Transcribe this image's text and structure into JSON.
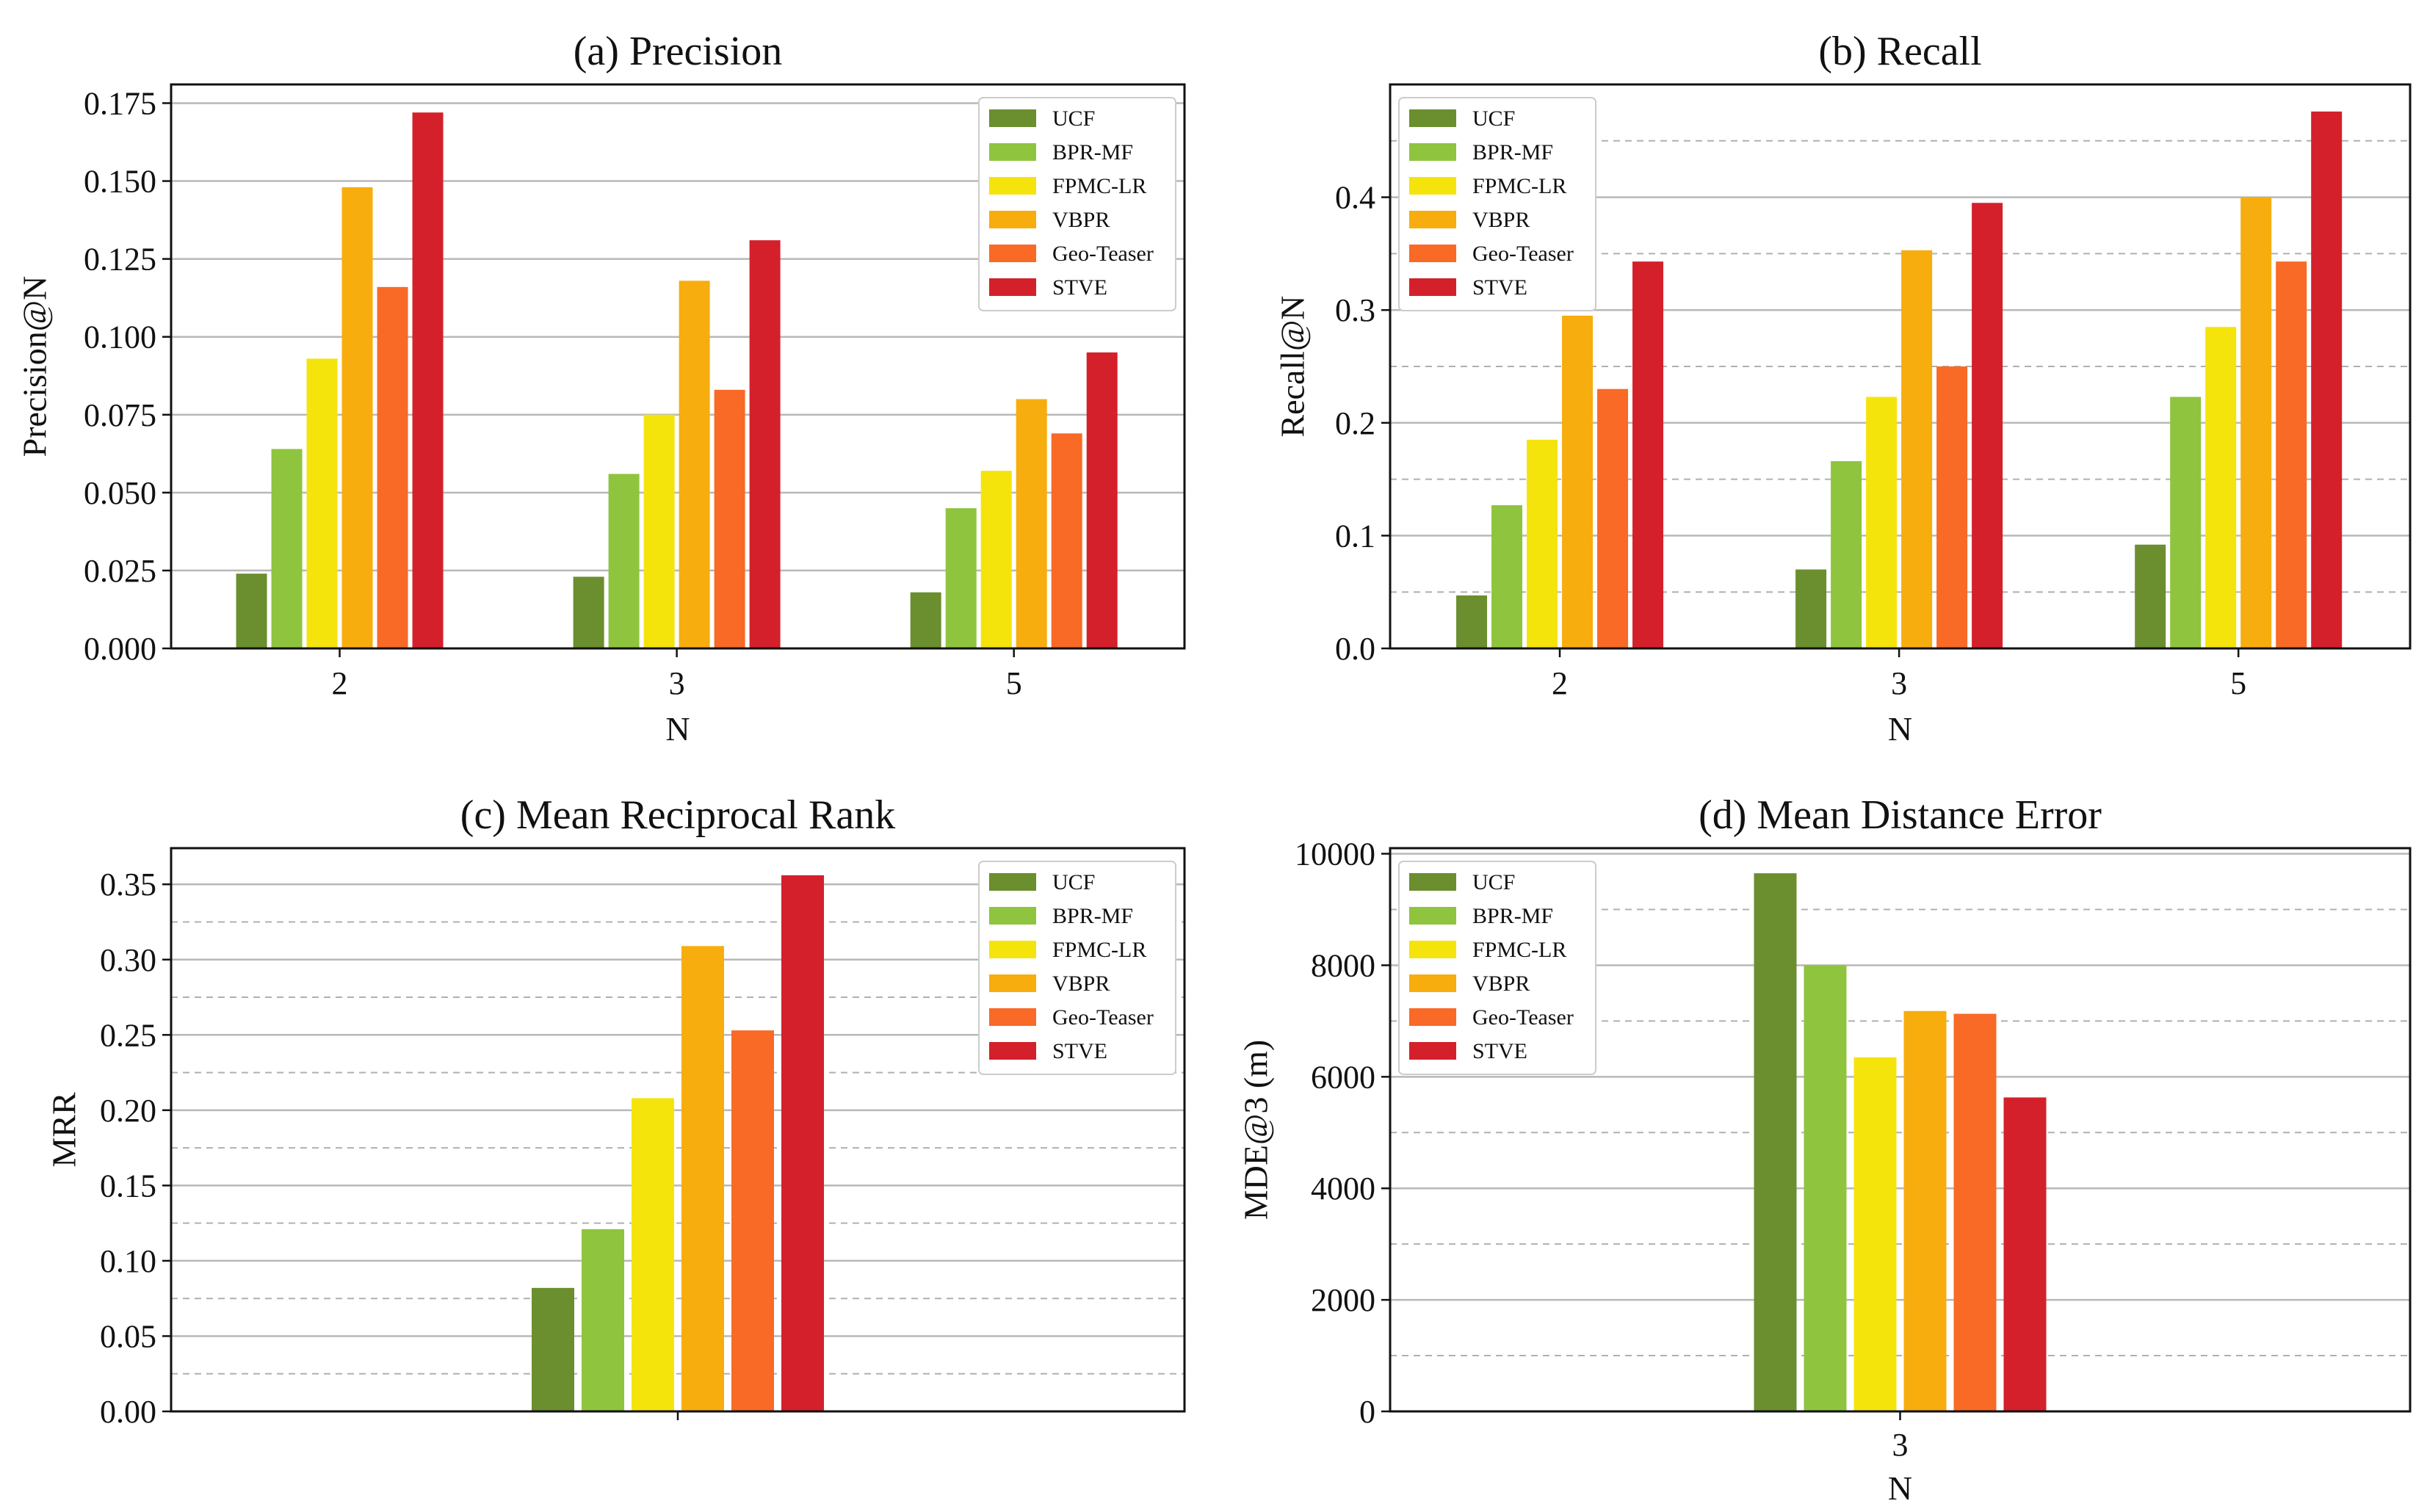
{
  "chart_data": [
    {
      "type": "bar",
      "title": "(a) Precision",
      "xlabel": "N",
      "ylabel": "Precision@N",
      "categories": [
        "2",
        "3",
        "5"
      ],
      "yticks": [
        0.0,
        0.025,
        0.05,
        0.075,
        0.1,
        0.125,
        0.15,
        0.175
      ],
      "ytick_labels": [
        "0.000",
        "0.025",
        "0.050",
        "0.075",
        "0.100",
        "0.125",
        "0.150",
        "0.175"
      ],
      "ylim": [
        0,
        0.181
      ],
      "grid": "major",
      "legend": "top-right",
      "series": [
        {
          "name": "UCF",
          "values": [
            0.024,
            0.023,
            0.018
          ]
        },
        {
          "name": "BPR-MF",
          "values": [
            0.064,
            0.056,
            0.045
          ]
        },
        {
          "name": "FPMC-LR",
          "values": [
            0.093,
            0.075,
            0.057
          ]
        },
        {
          "name": "VBPR",
          "values": [
            0.148,
            0.118,
            0.08
          ]
        },
        {
          "name": "Geo-Teaser",
          "values": [
            0.116,
            0.083,
            0.069
          ]
        },
        {
          "name": "STVE",
          "values": [
            0.172,
            0.131,
            0.095
          ]
        }
      ]
    },
    {
      "type": "bar",
      "title": "(b) Recall",
      "xlabel": "N",
      "ylabel": "Recall@N",
      "categories": [
        "2",
        "3",
        "5"
      ],
      "yticks": [
        0.0,
        0.1,
        0.2,
        0.3,
        0.4
      ],
      "ytick_labels": [
        "0.0",
        "0.1",
        "0.2",
        "0.3",
        "0.4"
      ],
      "ylim": [
        0,
        0.5
      ],
      "grid": "major+minor",
      "legend": "top-left",
      "series": [
        {
          "name": "UCF",
          "values": [
            0.047,
            0.07,
            0.092
          ]
        },
        {
          "name": "BPR-MF",
          "values": [
            0.127,
            0.166,
            0.223
          ]
        },
        {
          "name": "FPMC-LR",
          "values": [
            0.185,
            0.223,
            0.285
          ]
        },
        {
          "name": "VBPR",
          "values": [
            0.295,
            0.353,
            0.4
          ]
        },
        {
          "name": "Geo-Teaser",
          "values": [
            0.23,
            0.25,
            0.343
          ]
        },
        {
          "name": "STVE",
          "values": [
            0.343,
            0.395,
            0.476
          ]
        }
      ]
    },
    {
      "type": "bar",
      "title": "(c) Mean Reciprocal Rank",
      "xlabel": "",
      "ylabel": "MRR",
      "categories": [
        ""
      ],
      "yticks": [
        0.0,
        0.05,
        0.1,
        0.15,
        0.2,
        0.25,
        0.3,
        0.35
      ],
      "ytick_labels": [
        "0.00",
        "0.05",
        "0.10",
        "0.15",
        "0.20",
        "0.25",
        "0.30",
        "0.35"
      ],
      "ylim": [
        0,
        0.374
      ],
      "grid": "major+minor",
      "legend": "top-right",
      "series": [
        {
          "name": "UCF",
          "values": [
            0.082
          ]
        },
        {
          "name": "BPR-MF",
          "values": [
            0.121
          ]
        },
        {
          "name": "FPMC-LR",
          "values": [
            0.208
          ]
        },
        {
          "name": "VBPR",
          "values": [
            0.309
          ]
        },
        {
          "name": "Geo-Teaser",
          "values": [
            0.253
          ]
        },
        {
          "name": "STVE",
          "values": [
            0.356
          ]
        }
      ]
    },
    {
      "type": "bar",
      "title": "(d) Mean Distance Error",
      "xlabel": "N",
      "ylabel": "MDE@3 (m)",
      "categories": [
        "3"
      ],
      "yticks": [
        0,
        2000,
        4000,
        6000,
        8000,
        10000
      ],
      "ytick_labels": [
        "0",
        "2000",
        "4000",
        "6000",
        "8000",
        "10000"
      ],
      "ylim": [
        0,
        10100
      ],
      "grid": "major+minor",
      "legend": "top-left",
      "series": [
        {
          "name": "UCF",
          "values": [
            9650
          ]
        },
        {
          "name": "BPR-MF",
          "values": [
            8000
          ]
        },
        {
          "name": "FPMC-LR",
          "values": [
            6350
          ]
        },
        {
          "name": "VBPR",
          "values": [
            7180
          ]
        },
        {
          "name": "Geo-Teaser",
          "values": [
            7130
          ]
        },
        {
          "name": "STVE",
          "values": [
            5630
          ]
        }
      ]
    }
  ],
  "colors": {
    "UCF": "#6b8e2f",
    "BPR-MF": "#8fc43f",
    "FPMC-LR": "#f5e40c",
    "VBPR": "#f7ad0e",
    "Geo-Teaser": "#f86a26",
    "STVE": "#d4202b",
    "axis": "#111111",
    "grid_major": "#b8b8b8",
    "grid_minor": "#b0b0b0",
    "legend_border": "#cccccc"
  }
}
